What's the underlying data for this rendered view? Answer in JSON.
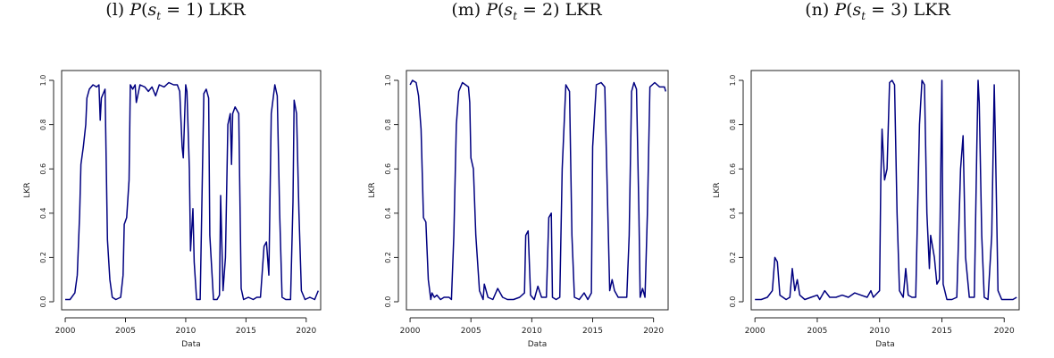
{
  "chart_data": [
    {
      "type": "line",
      "title_prefix": "(l)",
      "title_state": "1",
      "title_currency": "LKR",
      "xlabel": "Data",
      "ylabel": "LKR",
      "xlim": [
        1999.7,
        2021.2
      ],
      "ylim": [
        0,
        1
      ],
      "xticks": [
        2000,
        2005,
        2010,
        2015,
        2020
      ],
      "yticks": [
        "0.0",
        "0.2",
        "0.4",
        "0.6",
        "0.8",
        "1.0"
      ],
      "line_color": "#000080",
      "points": [
        [
          2000.0,
          0.01
        ],
        [
          2000.4,
          0.01
        ],
        [
          2000.8,
          0.04
        ],
        [
          2001.0,
          0.12
        ],
        [
          2001.2,
          0.4
        ],
        [
          2001.3,
          0.62
        ],
        [
          2001.5,
          0.7
        ],
        [
          2001.7,
          0.8
        ],
        [
          2001.8,
          0.92
        ],
        [
          2002.0,
          0.96
        ],
        [
          2002.3,
          0.98
        ],
        [
          2002.6,
          0.97
        ],
        [
          2002.8,
          0.98
        ],
        [
          2002.9,
          0.82
        ],
        [
          2003.0,
          0.92
        ],
        [
          2003.3,
          0.96
        ],
        [
          2003.5,
          0.28
        ],
        [
          2003.7,
          0.1
        ],
        [
          2003.9,
          0.02
        ],
        [
          2004.2,
          0.01
        ],
        [
          2004.6,
          0.02
        ],
        [
          2004.8,
          0.12
        ],
        [
          2004.9,
          0.35
        ],
        [
          2005.1,
          0.38
        ],
        [
          2005.3,
          0.55
        ],
        [
          2005.4,
          0.98
        ],
        [
          2005.6,
          0.96
        ],
        [
          2005.8,
          0.98
        ],
        [
          2005.9,
          0.9
        ],
        [
          2006.2,
          0.98
        ],
        [
          2006.6,
          0.97
        ],
        [
          2006.9,
          0.95
        ],
        [
          2007.2,
          0.97
        ],
        [
          2007.5,
          0.93
        ],
        [
          2007.8,
          0.98
        ],
        [
          2008.2,
          0.97
        ],
        [
          2008.6,
          0.99
        ],
        [
          2009.0,
          0.98
        ],
        [
          2009.3,
          0.98
        ],
        [
          2009.5,
          0.95
        ],
        [
          2009.7,
          0.7
        ],
        [
          2009.8,
          0.65
        ],
        [
          2010.0,
          0.98
        ],
        [
          2010.1,
          0.95
        ],
        [
          2010.3,
          0.6
        ],
        [
          2010.4,
          0.23
        ],
        [
          2010.6,
          0.42
        ],
        [
          2010.7,
          0.18
        ],
        [
          2010.9,
          0.01
        ],
        [
          2011.2,
          0.01
        ],
        [
          2011.5,
          0.94
        ],
        [
          2011.7,
          0.96
        ],
        [
          2011.9,
          0.92
        ],
        [
          2012.0,
          0.3
        ],
        [
          2012.3,
          0.01
        ],
        [
          2012.6,
          0.01
        ],
        [
          2012.8,
          0.03
        ],
        [
          2012.9,
          0.48
        ],
        [
          2013.1,
          0.05
        ],
        [
          2013.3,
          0.2
        ],
        [
          2013.5,
          0.8
        ],
        [
          2013.7,
          0.85
        ],
        [
          2013.8,
          0.62
        ],
        [
          2013.9,
          0.85
        ],
        [
          2014.1,
          0.88
        ],
        [
          2014.4,
          0.85
        ],
        [
          2014.6,
          0.06
        ],
        [
          2014.8,
          0.01
        ],
        [
          2015.2,
          0.02
        ],
        [
          2015.6,
          0.01
        ],
        [
          2015.9,
          0.02
        ],
        [
          2016.2,
          0.02
        ],
        [
          2016.5,
          0.25
        ],
        [
          2016.7,
          0.27
        ],
        [
          2016.9,
          0.12
        ],
        [
          2017.1,
          0.85
        ],
        [
          2017.4,
          0.98
        ],
        [
          2017.6,
          0.93
        ],
        [
          2017.8,
          0.4
        ],
        [
          2018.0,
          0.02
        ],
        [
          2018.3,
          0.01
        ],
        [
          2018.7,
          0.01
        ],
        [
          2018.9,
          0.45
        ],
        [
          2019.0,
          0.91
        ],
        [
          2019.2,
          0.85
        ],
        [
          2019.4,
          0.4
        ],
        [
          2019.6,
          0.05
        ],
        [
          2019.9,
          0.01
        ],
        [
          2020.3,
          0.02
        ],
        [
          2020.7,
          0.01
        ],
        [
          2021.0,
          0.05
        ]
      ]
    },
    {
      "type": "line",
      "title_prefix": "(m)",
      "title_state": "2",
      "title_currency": "LKR",
      "xlabel": "Data",
      "ylabel": "LKR",
      "xlim": [
        1999.7,
        2021.2
      ],
      "ylim": [
        0,
        1
      ],
      "xticks": [
        2000,
        2005,
        2010,
        2015,
        2020
      ],
      "yticks": [
        "0.0",
        "0.2",
        "0.4",
        "0.6",
        "0.8",
        "1.0"
      ],
      "line_color": "#000080",
      "points": [
        [
          2000.0,
          0.98
        ],
        [
          2000.2,
          1.0
        ],
        [
          2000.5,
          0.99
        ],
        [
          2000.7,
          0.93
        ],
        [
          2000.9,
          0.78
        ],
        [
          2001.1,
          0.38
        ],
        [
          2001.3,
          0.36
        ],
        [
          2001.5,
          0.1
        ],
        [
          2001.7,
          0.01
        ],
        [
          2001.8,
          0.04
        ],
        [
          2002.0,
          0.02
        ],
        [
          2002.2,
          0.03
        ],
        [
          2002.5,
          0.01
        ],
        [
          2002.8,
          0.02
        ],
        [
          2003.2,
          0.02
        ],
        [
          2003.4,
          0.01
        ],
        [
          2003.6,
          0.3
        ],
        [
          2003.8,
          0.8
        ],
        [
          2004.0,
          0.95
        ],
        [
          2004.3,
          0.99
        ],
        [
          2004.8,
          0.97
        ],
        [
          2004.9,
          0.9
        ],
        [
          2005.0,
          0.65
        ],
        [
          2005.2,
          0.6
        ],
        [
          2005.4,
          0.3
        ],
        [
          2005.7,
          0.05
        ],
        [
          2006.0,
          0.01
        ],
        [
          2006.1,
          0.08
        ],
        [
          2006.4,
          0.02
        ],
        [
          2006.8,
          0.01
        ],
        [
          2007.2,
          0.06
        ],
        [
          2007.6,
          0.02
        ],
        [
          2008.0,
          0.01
        ],
        [
          2008.5,
          0.01
        ],
        [
          2009.0,
          0.02
        ],
        [
          2009.4,
          0.04
        ],
        [
          2009.5,
          0.3
        ],
        [
          2009.7,
          0.32
        ],
        [
          2009.9,
          0.03
        ],
        [
          2010.2,
          0.01
        ],
        [
          2010.5,
          0.07
        ],
        [
          2010.8,
          0.02
        ],
        [
          2011.2,
          0.02
        ],
        [
          2011.4,
          0.38
        ],
        [
          2011.6,
          0.4
        ],
        [
          2011.7,
          0.02
        ],
        [
          2012.0,
          0.01
        ],
        [
          2012.3,
          0.02
        ],
        [
          2012.5,
          0.6
        ],
        [
          2012.8,
          0.98
        ],
        [
          2013.1,
          0.95
        ],
        [
          2013.3,
          0.3
        ],
        [
          2013.5,
          0.02
        ],
        [
          2013.9,
          0.01
        ],
        [
          2014.3,
          0.04
        ],
        [
          2014.6,
          0.01
        ],
        [
          2014.9,
          0.04
        ],
        [
          2015.0,
          0.7
        ],
        [
          2015.3,
          0.98
        ],
        [
          2015.7,
          0.99
        ],
        [
          2016.0,
          0.97
        ],
        [
          2016.2,
          0.5
        ],
        [
          2016.4,
          0.05
        ],
        [
          2016.6,
          0.1
        ],
        [
          2016.8,
          0.05
        ],
        [
          2017.1,
          0.02
        ],
        [
          2017.5,
          0.02
        ],
        [
          2017.8,
          0.02
        ],
        [
          2018.0,
          0.3
        ],
        [
          2018.2,
          0.95
        ],
        [
          2018.4,
          0.99
        ],
        [
          2018.6,
          0.96
        ],
        [
          2018.8,
          0.4
        ],
        [
          2018.9,
          0.02
        ],
        [
          2019.1,
          0.06
        ],
        [
          2019.3,
          0.02
        ],
        [
          2019.5,
          0.4
        ],
        [
          2019.7,
          0.97
        ],
        [
          2020.1,
          0.99
        ],
        [
          2020.5,
          0.97
        ],
        [
          2020.9,
          0.97
        ],
        [
          2021.0,
          0.95
        ]
      ]
    },
    {
      "type": "line",
      "title_prefix": "(n)",
      "title_state": "3",
      "title_currency": "LKR",
      "xlabel": "Data",
      "ylabel": "LKR",
      "xlim": [
        1999.7,
        2021.2
      ],
      "ylim": [
        0,
        1
      ],
      "xticks": [
        2000,
        2005,
        2010,
        2015,
        2020
      ],
      "yticks": [
        "0.0",
        "0.2",
        "0.4",
        "0.6",
        "0.8",
        "1.0"
      ],
      "line_color": "#000080",
      "points": [
        [
          2000.0,
          0.01
        ],
        [
          2000.5,
          0.01
        ],
        [
          2001.0,
          0.02
        ],
        [
          2001.4,
          0.05
        ],
        [
          2001.6,
          0.2
        ],
        [
          2001.8,
          0.18
        ],
        [
          2002.0,
          0.03
        ],
        [
          2002.5,
          0.01
        ],
        [
          2002.8,
          0.02
        ],
        [
          2003.0,
          0.15
        ],
        [
          2003.2,
          0.05
        ],
        [
          2003.4,
          0.1
        ],
        [
          2003.6,
          0.03
        ],
        [
          2004.0,
          0.01
        ],
        [
          2004.5,
          0.02
        ],
        [
          2005.0,
          0.03
        ],
        [
          2005.2,
          0.01
        ],
        [
          2005.6,
          0.05
        ],
        [
          2006.0,
          0.02
        ],
        [
          2006.5,
          0.02
        ],
        [
          2007.0,
          0.03
        ],
        [
          2007.5,
          0.02
        ],
        [
          2008.0,
          0.04
        ],
        [
          2008.5,
          0.03
        ],
        [
          2009.0,
          0.02
        ],
        [
          2009.3,
          0.05
        ],
        [
          2009.5,
          0.02
        ],
        [
          2010.0,
          0.05
        ],
        [
          2010.1,
          0.55
        ],
        [
          2010.2,
          0.78
        ],
        [
          2010.4,
          0.55
        ],
        [
          2010.6,
          0.6
        ],
        [
          2010.8,
          0.99
        ],
        [
          2011.0,
          1.0
        ],
        [
          2011.2,
          0.98
        ],
        [
          2011.4,
          0.4
        ],
        [
          2011.6,
          0.05
        ],
        [
          2011.9,
          0.02
        ],
        [
          2012.1,
          0.15
        ],
        [
          2012.3,
          0.03
        ],
        [
          2012.6,
          0.02
        ],
        [
          2012.9,
          0.02
        ],
        [
          2013.2,
          0.8
        ],
        [
          2013.4,
          1.0
        ],
        [
          2013.6,
          0.98
        ],
        [
          2013.8,
          0.4
        ],
        [
          2014.0,
          0.15
        ],
        [
          2014.1,
          0.3
        ],
        [
          2014.4,
          0.2
        ],
        [
          2014.6,
          0.08
        ],
        [
          2014.8,
          0.1
        ],
        [
          2015.0,
          1.0
        ],
        [
          2015.1,
          0.08
        ],
        [
          2015.4,
          0.01
        ],
        [
          2015.8,
          0.01
        ],
        [
          2016.2,
          0.02
        ],
        [
          2016.5,
          0.6
        ],
        [
          2016.7,
          0.75
        ],
        [
          2016.9,
          0.2
        ],
        [
          2017.2,
          0.02
        ],
        [
          2017.6,
          0.02
        ],
        [
          2017.8,
          0.7
        ],
        [
          2017.9,
          1.0
        ],
        [
          2018.0,
          0.9
        ],
        [
          2018.2,
          0.3
        ],
        [
          2018.4,
          0.02
        ],
        [
          2018.7,
          0.01
        ],
        [
          2019.0,
          0.3
        ],
        [
          2019.2,
          0.98
        ],
        [
          2019.3,
          0.7
        ],
        [
          2019.5,
          0.05
        ],
        [
          2019.8,
          0.01
        ],
        [
          2020.3,
          0.01
        ],
        [
          2020.7,
          0.01
        ],
        [
          2021.0,
          0.02
        ]
      ]
    }
  ]
}
